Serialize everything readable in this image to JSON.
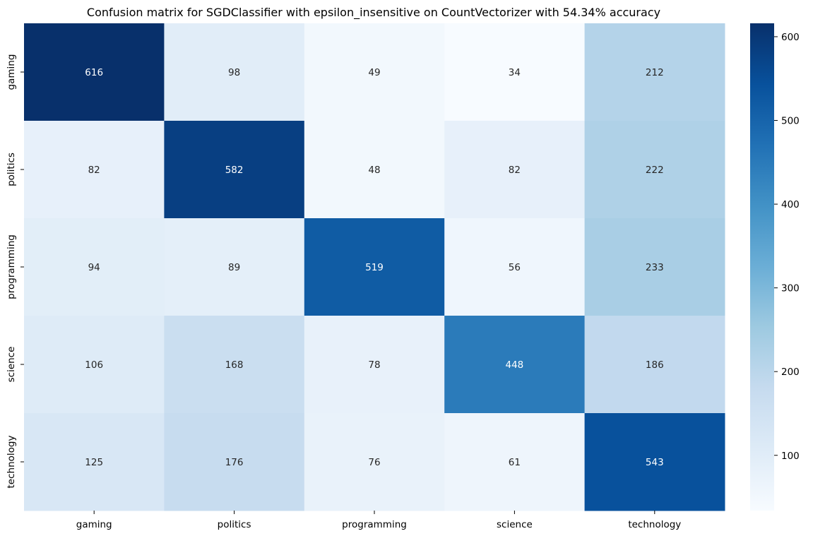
{
  "chart_data": {
    "type": "heatmap",
    "title": "Confusion matrix for SGDClassifier with epsilon_insensitive on CountVectorizer with 54.34% accuracy",
    "xlabel": "",
    "ylabel": "",
    "x_categories": [
      "gaming",
      "politics",
      "programming",
      "science",
      "technology"
    ],
    "y_categories": [
      "gaming",
      "politics",
      "programming",
      "science",
      "technology"
    ],
    "values": [
      [
        616,
        98,
        49,
        34,
        212
      ],
      [
        82,
        582,
        48,
        82,
        222
      ],
      [
        94,
        89,
        519,
        56,
        233
      ],
      [
        106,
        168,
        78,
        448,
        186
      ],
      [
        125,
        176,
        76,
        61,
        543
      ]
    ],
    "colormap": "Blues",
    "colorbar": {
      "min": 34,
      "max": 616,
      "ticks": [
        100,
        200,
        300,
        400,
        500,
        600
      ]
    },
    "grid": false
  }
}
